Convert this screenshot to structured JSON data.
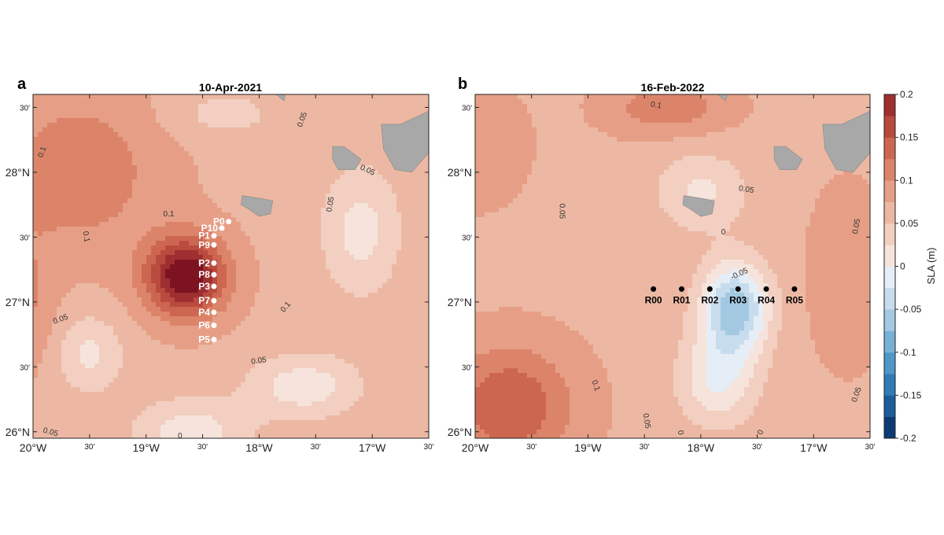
{
  "chart_data": [
    {
      "type": "heatmap",
      "panel": "a",
      "title": "10-Apr-2021",
      "x_ticks": [
        {
          "lon": -20.0,
          "label": "20°W"
        },
        {
          "lon": -19.5,
          "label": "30'"
        },
        {
          "lon": -19.0,
          "label": "19°W"
        },
        {
          "lon": -18.5,
          "label": "30'"
        },
        {
          "lon": -18.0,
          "label": "18°W"
        },
        {
          "lon": -17.5,
          "label": "30'"
        },
        {
          "lon": -17.0,
          "label": "17°W"
        },
        {
          "lon": -16.5,
          "label": "30'"
        }
      ],
      "y_ticks": [
        {
          "lat": 26.0,
          "label": "26°N"
        },
        {
          "lat": 26.5,
          "label": "30'"
        },
        {
          "lat": 27.0,
          "label": "27°N"
        },
        {
          "lat": 27.5,
          "label": "30'"
        },
        {
          "lat": 28.0,
          "label": "28°N"
        },
        {
          "lat": 28.5,
          "label": "30'"
        }
      ],
      "xlim": [
        -20.0,
        -16.5
      ],
      "ylim": [
        25.95,
        28.6
      ],
      "background_sla": 0.07,
      "features": [
        {
          "lon": -18.65,
          "lat": 27.2,
          "amp": 0.16,
          "sx": 0.35,
          "sy": 0.3
        },
        {
          "lon": -19.6,
          "lat": 28.0,
          "amp": 0.05,
          "sx": 0.7,
          "sy": 0.6
        },
        {
          "lon": -18.3,
          "lat": 28.45,
          "amp": -0.03,
          "sx": 0.5,
          "sy": 0.2
        },
        {
          "lon": -17.1,
          "lat": 27.55,
          "amp": -0.055,
          "sx": 0.35,
          "sy": 0.5
        },
        {
          "lon": -17.6,
          "lat": 26.35,
          "amp": -0.06,
          "sx": 0.5,
          "sy": 0.25
        },
        {
          "lon": -18.6,
          "lat": 26.0,
          "amp": -0.06,
          "sx": 0.5,
          "sy": 0.25
        },
        {
          "lon": -19.5,
          "lat": 26.6,
          "amp": -0.05,
          "sx": 0.3,
          "sy": 0.3
        },
        {
          "lon": -20.0,
          "lat": 27.0,
          "amp": 0.03,
          "sx": 0.2,
          "sy": 0.5
        }
      ],
      "contour_labels": [
        {
          "text": "0.1",
          "lon": -19.9,
          "lat": 28.15,
          "rot": -70
        },
        {
          "text": "0.1",
          "lon": -18.8,
          "lat": 27.66,
          "rot": 0
        },
        {
          "text": "0.1",
          "lon": -19.55,
          "lat": 27.5,
          "rot": 80
        },
        {
          "text": "0.1",
          "lon": -17.75,
          "lat": 26.95,
          "rot": -50
        },
        {
          "text": "0.05",
          "lon": -19.75,
          "lat": 26.85,
          "rot": -20
        },
        {
          "text": "0.05",
          "lon": -18.0,
          "lat": 26.53,
          "rot": -8
        },
        {
          "text": "0.05",
          "lon": -19.85,
          "lat": 25.98,
          "rot": 15
        },
        {
          "text": "0.05",
          "lon": -17.6,
          "lat": 28.4,
          "rot": -70
        },
        {
          "text": "0.05",
          "lon": -17.05,
          "lat": 28.0,
          "rot": 25
        },
        {
          "text": "0.05",
          "lon": -17.35,
          "lat": 27.75,
          "rot": -80
        },
        {
          "text": "0",
          "lon": -18.7,
          "lat": 25.95,
          "rot": 0
        }
      ],
      "stations": [
        {
          "id": "P0",
          "lon": -18.27,
          "lat": 27.62
        },
        {
          "id": "P10",
          "lon": -18.33,
          "lat": 27.57
        },
        {
          "id": "P1",
          "lon": -18.4,
          "lat": 27.51
        },
        {
          "id": "P9",
          "lon": -18.4,
          "lat": 27.44
        },
        {
          "id": "P2",
          "lon": -18.4,
          "lat": 27.3
        },
        {
          "id": "P8",
          "lon": -18.4,
          "lat": 27.21
        },
        {
          "id": "P3",
          "lon": -18.4,
          "lat": 27.12
        },
        {
          "id": "P7",
          "lon": -18.4,
          "lat": 27.01
        },
        {
          "id": "P4",
          "lon": -18.4,
          "lat": 26.92
        },
        {
          "id": "P6",
          "lon": -18.4,
          "lat": 26.82
        },
        {
          "id": "P5",
          "lon": -18.4,
          "lat": 26.71
        }
      ],
      "station_style": "white dots, white labels"
    },
    {
      "type": "heatmap",
      "panel": "b",
      "title": "16-Feb-2022",
      "x_ticks": [
        {
          "lon": -20.0,
          "label": "20°W"
        },
        {
          "lon": -19.5,
          "label": "30'"
        },
        {
          "lon": -19.0,
          "label": "19°W"
        },
        {
          "lon": -18.5,
          "label": "30'"
        },
        {
          "lon": -18.0,
          "label": "18°W"
        },
        {
          "lon": -17.5,
          "label": "30'"
        },
        {
          "lon": -17.0,
          "label": "17°W"
        },
        {
          "lon": -16.5,
          "label": "30'"
        }
      ],
      "y_ticks": [
        {
          "lat": 26.0,
          "label": "26°N"
        },
        {
          "lat": 26.5,
          "label": "30'"
        },
        {
          "lat": 27.0,
          "label": "27°N"
        },
        {
          "lat": 27.5,
          "label": "30'"
        },
        {
          "lat": 28.0,
          "label": "28°N"
        },
        {
          "lat": 28.5,
          "label": "30'"
        }
      ],
      "xlim": [
        -20.0,
        -16.5
      ],
      "ylim": [
        25.95,
        28.6
      ],
      "background_sla": 0.07,
      "features": [
        {
          "lon": -17.7,
          "lat": 26.95,
          "amp": -0.14,
          "sx": 0.3,
          "sy": 0.35
        },
        {
          "lon": -17.85,
          "lat": 26.4,
          "amp": -0.07,
          "sx": 0.35,
          "sy": 0.35
        },
        {
          "lon": -18.0,
          "lat": 27.85,
          "amp": -0.05,
          "sx": 0.4,
          "sy": 0.3
        },
        {
          "lon": -19.7,
          "lat": 26.2,
          "amp": 0.08,
          "sx": 0.55,
          "sy": 0.45
        },
        {
          "lon": -18.3,
          "lat": 28.5,
          "amp": 0.05,
          "sx": 0.5,
          "sy": 0.2
        },
        {
          "lon": -16.7,
          "lat": 27.2,
          "amp": 0.03,
          "sx": 0.3,
          "sy": 0.6
        },
        {
          "lon": -20.0,
          "lat": 28.2,
          "amp": 0.03,
          "sx": 0.4,
          "sy": 0.4
        }
      ],
      "contour_labels": [
        {
          "text": "0.1",
          "lon": -18.4,
          "lat": 28.5,
          "rot": 10
        },
        {
          "text": "0.05",
          "lon": -17.6,
          "lat": 27.85,
          "rot": 10
        },
        {
          "text": "0.05",
          "lon": -19.25,
          "lat": 27.7,
          "rot": 90
        },
        {
          "text": "0.05",
          "lon": -16.6,
          "lat": 27.58,
          "rot": -80
        },
        {
          "text": "0.05",
          "lon": -16.6,
          "lat": 26.28,
          "rot": -70
        },
        {
          "text": "0.05",
          "lon": -18.5,
          "lat": 26.08,
          "rot": 80
        },
        {
          "text": "0.1",
          "lon": -18.95,
          "lat": 26.35,
          "rot": 70
        },
        {
          "text": "0",
          "lon": -17.8,
          "lat": 27.52,
          "rot": 0
        },
        {
          "text": "-0.05",
          "lon": -17.65,
          "lat": 27.2,
          "rot": -25
        },
        {
          "text": "0",
          "lon": -18.2,
          "lat": 25.99,
          "rot": 80
        },
        {
          "text": "0",
          "lon": -17.45,
          "lat": 25.99,
          "rot": -70
        }
      ],
      "stations": [
        {
          "id": "R00",
          "lon": -18.42,
          "lat": 27.1
        },
        {
          "id": "R01",
          "lon": -18.17,
          "lat": 27.1
        },
        {
          "id": "R02",
          "lon": -17.92,
          "lat": 27.1
        },
        {
          "id": "R03",
          "lon": -17.67,
          "lat": 27.1
        },
        {
          "id": "R04",
          "lon": -17.42,
          "lat": 27.1
        },
        {
          "id": "R05",
          "lon": -17.17,
          "lat": 27.1
        }
      ],
      "station_style": "black dots, black labels"
    }
  ],
  "colorbar": {
    "label": "SLA (m)",
    "min": -0.2,
    "max": 0.2,
    "step": 0.025,
    "ticks": [
      {
        "value": 0.2,
        "label": "0.2"
      },
      {
        "value": 0.15,
        "label": "0.15"
      },
      {
        "value": 0.1,
        "label": "0.1"
      },
      {
        "value": 0.05,
        "label": "0.05"
      },
      {
        "value": 0.0,
        "label": "0"
      },
      {
        "value": -0.05,
        "label": "-0.05"
      },
      {
        "value": -0.1,
        "label": "-0.1"
      },
      {
        "value": -0.15,
        "label": "-0.15"
      },
      {
        "value": -0.2,
        "label": "-0.2"
      }
    ],
    "colors_low_to_high": [
      "#0b3a75",
      "#1d5c9c",
      "#2f7bb8",
      "#4f97c8",
      "#79b0d6",
      "#a3c8e2",
      "#c7dcec",
      "#e5eef6",
      "#f6e4dc",
      "#f2cfc0",
      "#edb8a3",
      "#e69f86",
      "#dc846a",
      "#cd6650",
      "#b94b3e",
      "#9e2f31",
      "#7d1221"
    ]
  },
  "land_color": "#a8a8a8",
  "islands": [
    {
      "name": "La Palma",
      "points": [
        [
          -17.87,
          28.85
        ],
        [
          -17.73,
          28.84
        ],
        [
          -17.74,
          28.7
        ],
        [
          -17.78,
          28.55
        ],
        [
          -17.85,
          28.6
        ],
        [
          -17.9,
          28.8
        ]
      ]
    },
    {
      "name": "La Gomera",
      "points": [
        [
          -17.35,
          28.2
        ],
        [
          -17.25,
          28.2
        ],
        [
          -17.1,
          28.1
        ],
        [
          -17.15,
          28.02
        ],
        [
          -17.3,
          28.02
        ],
        [
          -17.35,
          28.1
        ]
      ]
    },
    {
      "name": "El Hierro",
      "points": [
        [
          -18.15,
          27.82
        ],
        [
          -18.0,
          27.8
        ],
        [
          -17.88,
          27.78
        ],
        [
          -17.9,
          27.68
        ],
        [
          -18.0,
          27.66
        ],
        [
          -18.1,
          27.72
        ],
        [
          -18.16,
          27.75
        ]
      ]
    },
    {
      "name": "Tenerife",
      "points": [
        [
          -16.92,
          28.37
        ],
        [
          -16.75,
          28.37
        ],
        [
          -16.55,
          28.45
        ],
        [
          -16.2,
          28.6
        ],
        [
          -16.1,
          28.57
        ],
        [
          -16.3,
          28.4
        ],
        [
          -16.45,
          28.2
        ],
        [
          -16.65,
          28.0
        ],
        [
          -16.8,
          28.02
        ],
        [
          -16.9,
          28.18
        ]
      ]
    }
  ]
}
